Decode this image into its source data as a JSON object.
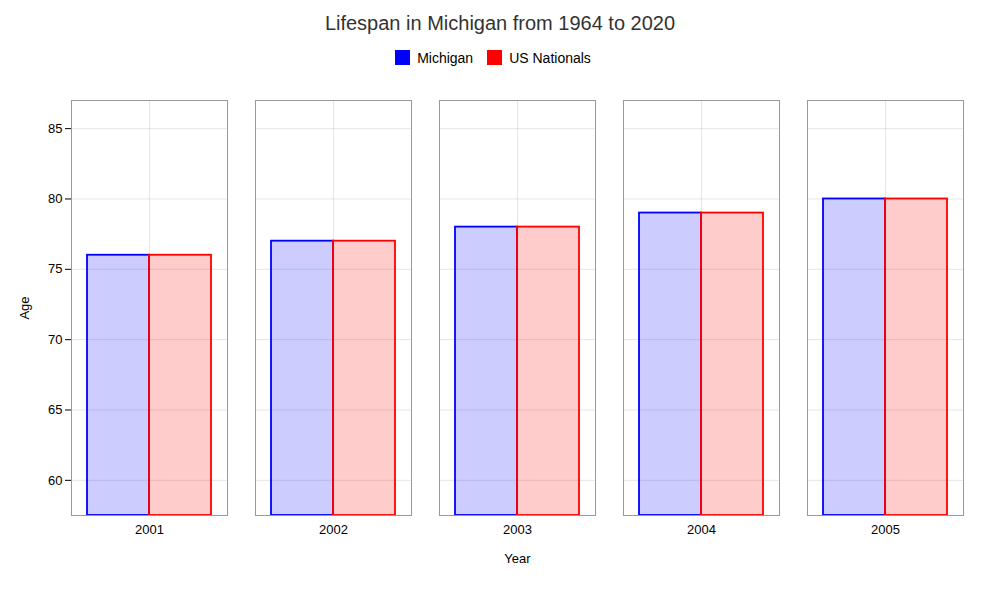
{
  "chart_data": {
    "type": "bar",
    "title": "Lifespan in Michigan from 1964 to 2020",
    "xlabel": "Year",
    "ylabel": "Age",
    "categories": [
      "2001",
      "2002",
      "2003",
      "2004",
      "2005"
    ],
    "series": [
      {
        "name": "Michigan",
        "color": "#0000ff",
        "values": [
          76.0,
          77.0,
          78.0,
          79.0,
          80.0
        ]
      },
      {
        "name": "US Nationals",
        "color": "#ff0000",
        "values": [
          76.0,
          77.0,
          78.0,
          79.0,
          80.0
        ]
      }
    ],
    "ylim": [
      57.5,
      87.0
    ],
    "yticks": [
      60,
      65,
      70,
      75,
      80,
      85
    ],
    "grid": true,
    "legend": "top"
  }
}
